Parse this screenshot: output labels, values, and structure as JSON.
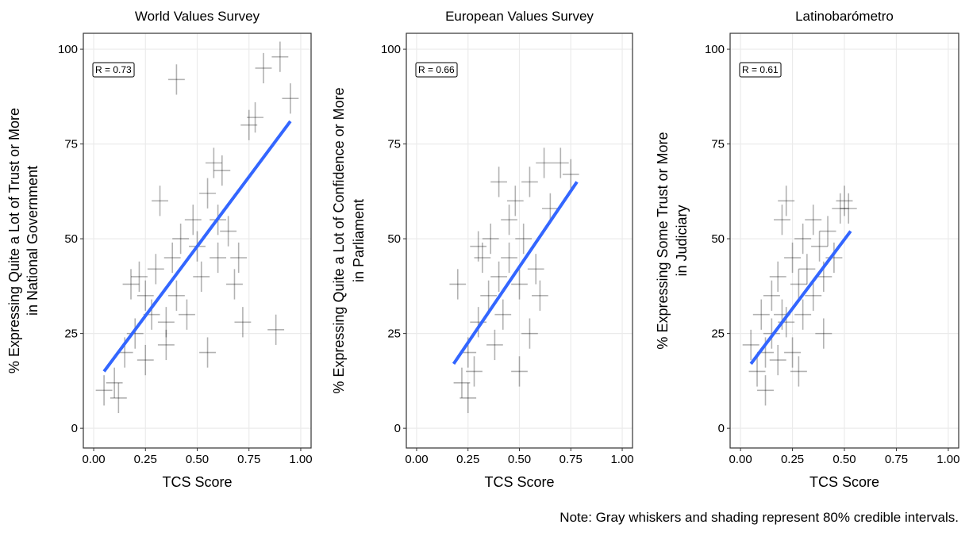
{
  "chart_data": [
    {
      "type": "scatter",
      "title": "World Values Survey",
      "xlabel": "TCS Score",
      "ylabel": [
        "% Expressing Quite a Lot of Trust or More",
        "in National Government"
      ],
      "annotation": "R = 0.73",
      "x": [
        0.05,
        0.1,
        0.12,
        0.15,
        0.18,
        0.2,
        0.22,
        0.25,
        0.28,
        0.3,
        0.32,
        0.35,
        0.38,
        0.4,
        0.4,
        0.42,
        0.45,
        0.48,
        0.5,
        0.52,
        0.55,
        0.58,
        0.6,
        0.62,
        0.65,
        0.68,
        0.7,
        0.72,
        0.75,
        0.78,
        0.82,
        0.88,
        0.9,
        0.95,
        0.25,
        0.35,
        0.55,
        0.6
      ],
      "y": [
        10,
        12,
        8,
        20,
        38,
        25,
        40,
        35,
        30,
        42,
        60,
        28,
        45,
        92,
        35,
        50,
        30,
        55,
        48,
        40,
        62,
        70,
        55,
        68,
        52,
        38,
        45,
        28,
        80,
        82,
        95,
        26,
        98,
        87,
        18,
        22,
        20,
        45
      ],
      "x_error": 0.04,
      "y_error": 4,
      "color": "#000000",
      "fit": {
        "x": [
          0.05,
          0.95
        ],
        "y": [
          15,
          81
        ]
      },
      "fit_color": "#3366ff",
      "xlim": [
        -0.05,
        1.05
      ],
      "ylim": [
        -5.2,
        104.2
      ],
      "xticks": [
        {
          "value": 0,
          "label": "0.00"
        },
        {
          "value": 0.25,
          "label": "0.25"
        },
        {
          "value": 0.5,
          "label": "0.50"
        },
        {
          "value": 0.75,
          "label": "0.75"
        },
        {
          "value": 1,
          "label": "1.00"
        }
      ],
      "yticks": [
        0,
        25,
        50,
        75,
        100
      ],
      "grid": true
    },
    {
      "type": "scatter",
      "title": "European Values Survey",
      "xlabel": "TCS Score",
      "ylabel": [
        "% Expressing Quite a Lot of Confidence or More",
        "in Parliament"
      ],
      "annotation": "R = 0.66",
      "x": [
        0.2,
        0.22,
        0.25,
        0.25,
        0.28,
        0.3,
        0.32,
        0.35,
        0.36,
        0.38,
        0.4,
        0.42,
        0.45,
        0.45,
        0.48,
        0.5,
        0.52,
        0.55,
        0.55,
        0.58,
        0.6,
        0.62,
        0.65,
        0.7,
        0.75,
        0.4,
        0.3,
        0.5
      ],
      "y": [
        38,
        12,
        20,
        8,
        15,
        28,
        45,
        35,
        50,
        22,
        40,
        30,
        55,
        45,
        60,
        38,
        50,
        65,
        25,
        42,
        35,
        70,
        58,
        70,
        67,
        65,
        48,
        15
      ],
      "x_error": 0.04,
      "y_error": 4,
      "color": "#000000",
      "fit": {
        "x": [
          0.18,
          0.78
        ],
        "y": [
          17,
          65
        ]
      },
      "fit_color": "#3366ff",
      "xlim": [
        -0.05,
        1.05
      ],
      "ylim": [
        -5.2,
        104.2
      ],
      "xticks": [
        {
          "value": 0,
          "label": "0.00"
        },
        {
          "value": 0.25,
          "label": "0.25"
        },
        {
          "value": 0.5,
          "label": "0.50"
        },
        {
          "value": 0.75,
          "label": "0.75"
        },
        {
          "value": 1,
          "label": "1.00"
        }
      ],
      "yticks": [
        0,
        25,
        50,
        75,
        100
      ],
      "grid": true
    },
    {
      "type": "scatter",
      "title": "Latinobarómetro",
      "xlabel": "TCS Score",
      "ylabel": [
        "% Expressing Some Trust or More",
        "in Judiciary"
      ],
      "annotation": "R = 0.61",
      "x": [
        0.05,
        0.08,
        0.1,
        0.12,
        0.12,
        0.15,
        0.15,
        0.18,
        0.18,
        0.2,
        0.2,
        0.22,
        0.25,
        0.25,
        0.28,
        0.3,
        0.3,
        0.32,
        0.35,
        0.35,
        0.38,
        0.4,
        0.42,
        0.45,
        0.48,
        0.5,
        0.52,
        0.22,
        0.28,
        0.4
      ],
      "y": [
        22,
        15,
        30,
        20,
        10,
        35,
        25,
        40,
        18,
        30,
        55,
        28,
        45,
        20,
        38,
        50,
        30,
        42,
        55,
        35,
        48,
        40,
        52,
        45,
        58,
        60,
        58,
        60,
        15,
        25
      ],
      "x_error": 0.04,
      "y_error": 4,
      "color": "#000000",
      "fit": {
        "x": [
          0.05,
          0.53
        ],
        "y": [
          17,
          52
        ]
      },
      "fit_color": "#3366ff",
      "xlim": [
        -0.05,
        1.05
      ],
      "ylim": [
        -5.2,
        104.2
      ],
      "xticks": [
        {
          "value": 0,
          "label": "0.00"
        },
        {
          "value": 0.25,
          "label": "0.25"
        },
        {
          "value": 0.5,
          "label": "0.50"
        },
        {
          "value": 0.75,
          "label": "0.75"
        },
        {
          "value": 1,
          "label": "1.00"
        }
      ],
      "yticks": [
        0,
        25,
        50,
        75,
        100
      ],
      "grid": true
    }
  ],
  "note": "Note: Gray whiskers and shading represent 80% credible intervals."
}
